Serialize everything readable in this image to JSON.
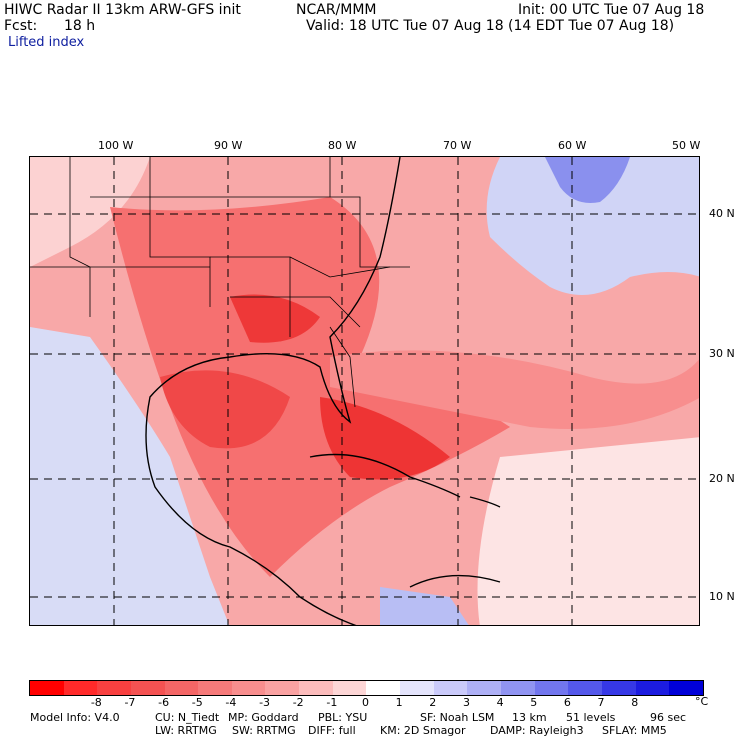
{
  "header": {
    "title_left": "HIWC Radar II 13km ARW-GFS init",
    "center": "NCAR/MMM",
    "init": "Init: 00 UTC Tue 07 Aug 18",
    "fcst_label": "Fcst:",
    "fcst_value": "18 h",
    "valid": "Valid: 18 UTC Tue 07 Aug 18 (14 EDT Tue 07 Aug 18)",
    "field": "Lifted index"
  },
  "map": {
    "lon_labels": [
      "100 W",
      "90 W",
      "80 W",
      "70 W",
      "60 W",
      "50 W"
    ],
    "lat_labels": [
      "40 N",
      "30 N",
      "20 N",
      "10 N"
    ],
    "background_color": "#f8a8a8",
    "colors": {
      "strong": "#f03a3a",
      "moderate": "#f67070",
      "light": "#fab4b4",
      "neutral": "#fde6e6",
      "blue_light": "#c8ccf4",
      "blue_mid": "#7c84ec"
    }
  },
  "colorbar": {
    "unit": "°C",
    "tick_labels": [
      "-8",
      "-7",
      "-6",
      "-5",
      "-4",
      "-3",
      "-2",
      "-1",
      "0",
      "1",
      "2",
      "3",
      "4",
      "5",
      "6",
      "7",
      "8"
    ],
    "colors": [
      "#ff0000",
      "#ff2a2a",
      "#f84040",
      "#f45252",
      "#f46666",
      "#f67a7a",
      "#f88e8e",
      "#faa2a2",
      "#fcbcbc",
      "#fdd6d6",
      "#ffffff",
      "#e4e4fc",
      "#cacafa",
      "#aeb0f6",
      "#9094f2",
      "#7276ee",
      "#5458ea",
      "#3638e6",
      "#1c1ce0",
      "#0000d8"
    ]
  },
  "footer": {
    "line1": [
      "Model Info: V4.0",
      "CU: N_Tiedt",
      "MP: Goddard",
      "PBL: YSU",
      "SF: Noah LSM",
      "13 km",
      "51 levels",
      "96 sec"
    ],
    "line2": [
      "LW: RRTMG",
      "SW: RRTMG",
      "DIFF: full",
      "KM: 2D Smagor",
      "DAMP: Rayleigh3",
      "SFLAY: MM5"
    ]
  }
}
